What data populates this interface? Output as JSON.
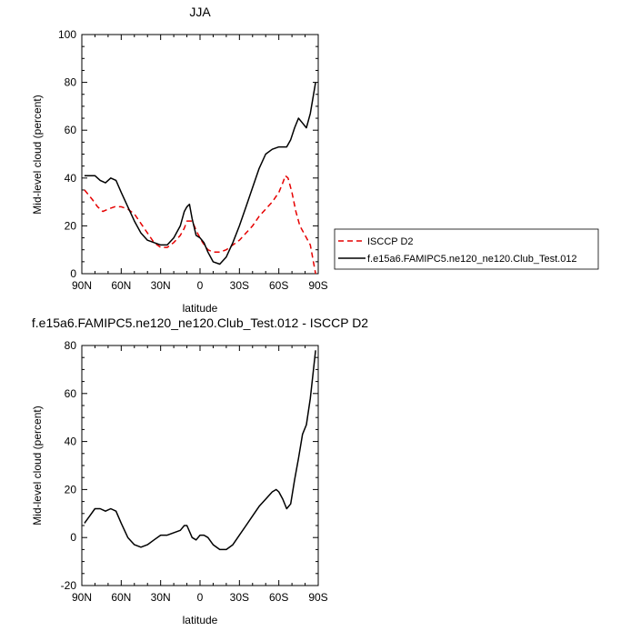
{
  "chart_data": [
    {
      "type": "line",
      "title": "JJA",
      "xlabel": "latitude",
      "ylabel": "Mid-level cloud (percent)",
      "xlim": [
        90,
        -90
      ],
      "ylim": [
        0,
        100
      ],
      "x_ticks": [
        90,
        60,
        30,
        0,
        -30,
        -60,
        -90
      ],
      "x_tick_labels": [
        "90N",
        "60N",
        "30N",
        "0",
        "30S",
        "60S",
        "90S"
      ],
      "y_ticks": [
        0,
        20,
        40,
        60,
        80,
        100
      ],
      "y_tick_labels": [
        "0",
        "20",
        "40",
        "60",
        "80",
        "100"
      ],
      "legend_position": "right",
      "series": [
        {
          "name": "ISCCP D2",
          "color": "#e60000",
          "dash": "dashed",
          "x": [
            88,
            82,
            78,
            74,
            70,
            65,
            60,
            55,
            50,
            45,
            40,
            35,
            30,
            25,
            20,
            15,
            12,
            10,
            6,
            2,
            -2,
            -6,
            -10,
            -15,
            -20,
            -25,
            -30,
            -35,
            -40,
            -45,
            -50,
            -55,
            -60,
            -63,
            -65,
            -67,
            -70,
            -73,
            -76,
            -80,
            -84,
            -88
          ],
          "y": [
            35,
            31,
            28,
            26,
            27,
            28,
            28,
            27,
            25,
            21,
            17,
            13,
            11,
            11,
            13,
            16,
            19,
            22,
            22,
            17,
            13,
            10,
            9,
            9,
            10,
            12,
            14,
            17,
            20,
            24,
            27,
            30,
            34,
            38,
            41,
            40,
            34,
            26,
            20,
            16,
            12,
            0
          ]
        },
        {
          "name": "f.e15a6.FAMIPC5.ne120_ne120.Club_Test.012",
          "color": "#000000",
          "dash": "solid",
          "x": [
            88,
            84,
            80,
            76,
            72,
            68,
            64,
            60,
            55,
            50,
            45,
            40,
            35,
            30,
            25,
            20,
            15,
            12,
            10,
            8,
            6,
            3,
            0,
            -3,
            -6,
            -10,
            -15,
            -20,
            -25,
            -30,
            -35,
            -40,
            -45,
            -50,
            -55,
            -60,
            -63,
            -66,
            -69,
            -72,
            -75,
            -78,
            -81,
            -84,
            -88
          ],
          "y": [
            41,
            41,
            41,
            39,
            38,
            40,
            39,
            34,
            28,
            22,
            17,
            14,
            13,
            12,
            12,
            15,
            20,
            26,
            28,
            29,
            23,
            16,
            15,
            13,
            9,
            5,
            4,
            7,
            13,
            20,
            28,
            36,
            44,
            50,
            52,
            53,
            53,
            53,
            56,
            61,
            65,
            63,
            61,
            67,
            80
          ]
        }
      ]
    },
    {
      "type": "line",
      "title": "f.e15a6.FAMIPC5.ne120_ne120.Club_Test.012 - ISCCP D2",
      "xlabel": "latitude",
      "ylabel": "Mid-level cloud (percent)",
      "xlim": [
        90,
        -90
      ],
      "ylim": [
        -20,
        80
      ],
      "x_ticks": [
        90,
        60,
        30,
        0,
        -30,
        -60,
        -90
      ],
      "x_tick_labels": [
        "90N",
        "60N",
        "30N",
        "0",
        "30S",
        "60S",
        "90S"
      ],
      "y_ticks": [
        -20,
        0,
        20,
        40,
        60,
        80
      ],
      "y_tick_labels": [
        "-20",
        "0",
        "20",
        "40",
        "60",
        "80"
      ],
      "series": [
        {
          "color": "#000000",
          "dash": "solid",
          "x": [
            88,
            84,
            80,
            76,
            72,
            68,
            64,
            60,
            55,
            50,
            45,
            40,
            35,
            30,
            25,
            20,
            15,
            12,
            10,
            6,
            3,
            0,
            -3,
            -6,
            -10,
            -15,
            -20,
            -25,
            -30,
            -35,
            -40,
            -45,
            -50,
            -55,
            -58,
            -60,
            -63,
            -66,
            -69,
            -72,
            -75,
            -78,
            -81,
            -84,
            -88
          ],
          "y": [
            6,
            9,
            12,
            12,
            11,
            12,
            11,
            6,
            0,
            -3,
            -4,
            -3,
            -1,
            1,
            1,
            2,
            3,
            5,
            5,
            0,
            -1,
            1,
            1,
            0,
            -3,
            -5,
            -5,
            -3,
            1,
            5,
            9,
            13,
            16,
            19,
            20,
            19,
            16,
            12,
            14,
            24,
            33,
            43,
            47,
            58,
            78
          ]
        }
      ]
    }
  ]
}
